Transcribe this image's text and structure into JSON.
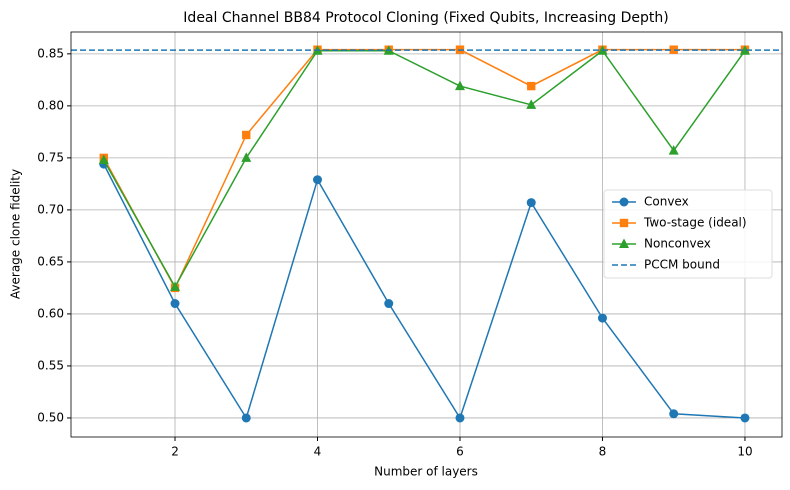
{
  "chart_data": {
    "type": "line",
    "title": "Ideal Channel BB84 Protocol Cloning (Fixed Qubits, Increasing Depth)",
    "x_label": "Number of layers",
    "y_label": "Average clone fidelity",
    "x": [
      1,
      2,
      3,
      4,
      5,
      6,
      7,
      8,
      9,
      10
    ],
    "series": [
      {
        "name": "Convex",
        "color": "#1f77b4",
        "marker": "circle",
        "values": [
          0.744,
          0.61,
          0.5,
          0.729,
          0.61,
          0.5,
          0.707,
          0.596,
          0.504,
          0.5
        ]
      },
      {
        "name": "Two-stage (ideal)",
        "color": "#ff7f0e",
        "marker": "square",
        "values": [
          0.75,
          0.625,
          0.772,
          0.854,
          0.854,
          0.854,
          0.819,
          0.854,
          0.854,
          0.854
        ]
      },
      {
        "name": "Nonconvex",
        "color": "#2ca02c",
        "marker": "triangle",
        "values": [
          0.748,
          0.626,
          0.75,
          0.853,
          0.853,
          0.819,
          0.801,
          0.853,
          0.757,
          0.853
        ]
      }
    ],
    "reference_line": {
      "name": "PCCM bound",
      "color": "#1f77b4",
      "style": "dashed",
      "value": 0.8536
    },
    "xlim": [
      0.54,
      10.52
    ],
    "ylim": [
      0.4817,
      0.871
    ],
    "xticks": [
      2,
      4,
      6,
      8,
      10
    ],
    "yticks": [
      {
        "value": 0.5,
        "label": "0.50"
      },
      {
        "value": 0.55,
        "label": "0.55"
      },
      {
        "value": 0.6,
        "label": "0.60"
      },
      {
        "value": 0.65,
        "label": "0.65"
      },
      {
        "value": 0.7,
        "label": "0.70"
      },
      {
        "value": 0.75,
        "label": "0.75"
      },
      {
        "value": 0.8,
        "label": "0.80"
      },
      {
        "value": 0.85,
        "label": "0.85"
      }
    ],
    "grid": true,
    "legend_position": "right"
  }
}
